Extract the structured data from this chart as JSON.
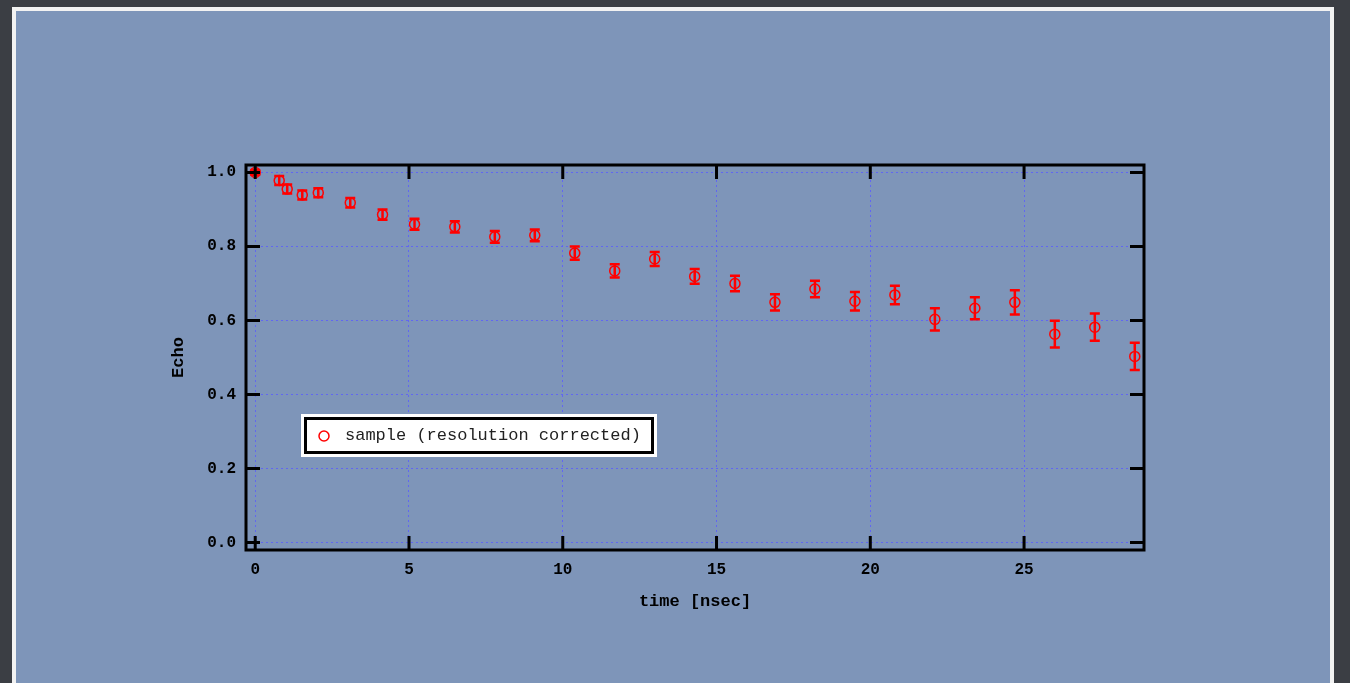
{
  "chart_data": {
    "type": "scatter",
    "xlabel": "time [nsec]",
    "ylabel": "Echo",
    "x": [
      0,
      0.78,
      1.04,
      1.53,
      2.05,
      3.09,
      4.14,
      5.18,
      6.49,
      7.79,
      9.09,
      10.39,
      11.69,
      12.99,
      14.29,
      15.6,
      16.9,
      18.2,
      19.5,
      20.8,
      22.1,
      23.4,
      24.7,
      26.0,
      27.3,
      28.6
    ],
    "series": [
      {
        "name": "sample (resolution corrected)",
        "color": "#ff0000",
        "values": [
          1.0,
          0.978,
          0.955,
          0.939,
          0.945,
          0.918,
          0.886,
          0.86,
          0.853,
          0.826,
          0.83,
          0.782,
          0.734,
          0.766,
          0.719,
          0.7,
          0.649,
          0.685,
          0.652,
          0.669,
          0.603,
          0.633,
          0.649,
          0.563,
          0.582,
          0.503
        ],
        "errors": [
          0.006,
          0.012,
          0.012,
          0.012,
          0.012,
          0.013,
          0.014,
          0.015,
          0.015,
          0.016,
          0.016,
          0.018,
          0.018,
          0.019,
          0.02,
          0.021,
          0.022,
          0.022,
          0.025,
          0.025,
          0.03,
          0.03,
          0.033,
          0.036,
          0.037,
          0.037
        ]
      }
    ],
    "xlim": [
      -0.3,
      28.9
    ],
    "xticks": [
      0,
      5,
      10,
      15,
      20,
      25
    ],
    "ylim": [
      -0.02,
      1.02
    ],
    "yticks": [
      {
        "value": 0,
        "label": "0.0"
      },
      {
        "value": 0.2,
        "label": "0.2"
      },
      {
        "value": 0.4,
        "label": "0.4"
      },
      {
        "value": 0.6,
        "label": "0.6"
      },
      {
        "value": 0.8,
        "label": "0.8"
      },
      {
        "value": 1,
        "label": "1.0"
      }
    ],
    "grid": true,
    "legend": "bottom left",
    "marker": "circle"
  }
}
